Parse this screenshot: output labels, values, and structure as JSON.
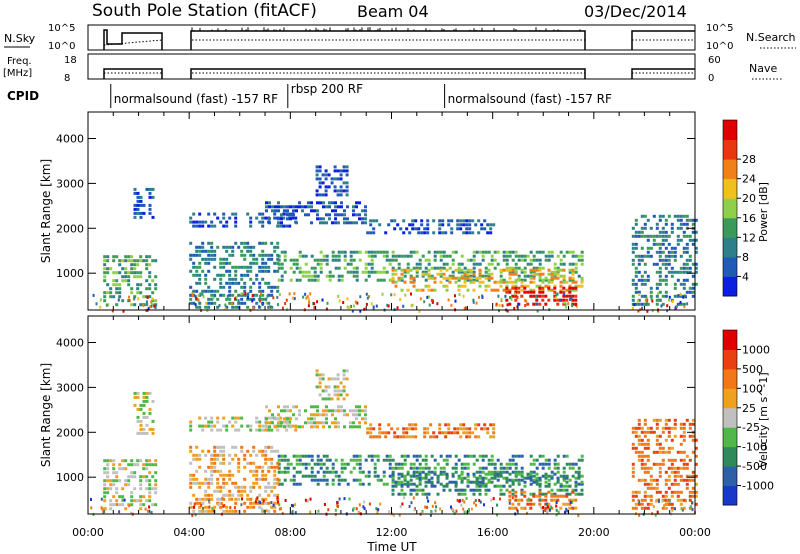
{
  "header": {
    "station": "South Pole Station (fitACF)",
    "beam": "Beam 04",
    "date": "03/Dec/2014"
  },
  "status_panels": {
    "nsky_label": "N.Sky",
    "nsky_ticks": [
      "10^5",
      "10^0"
    ],
    "nsearch_label": "N.Search",
    "nsearch_ticks": [
      "10^5",
      "10^0"
    ],
    "freq_label": "Freq.",
    "freq_unit": "[MHz]",
    "freq_ticks": [
      "18",
      "8"
    ],
    "nave_label": "Nave",
    "nave_ticks": [
      "60",
      "0"
    ],
    "cpid_label": "CPID",
    "cpid_segments": [
      {
        "label": "normalsound (fast) -157 RF",
        "start_h": 0.9,
        "end_h": 7.9
      },
      {
        "label": "rbsp 200 RF",
        "start_h": 7.9,
        "end_h": 14.1
      },
      {
        "label": "normalsound (fast) -157 RF",
        "start_h": 14.1,
        "end_h": 21.5
      }
    ]
  },
  "chart_data": [
    {
      "type": "heatmap",
      "name": "power",
      "title": "",
      "xlabel": "Time UT",
      "ylabel": "Slant Range [km]",
      "x_ticks": [
        "00:00",
        "04:00",
        "08:00",
        "12:00",
        "16:00",
        "20:00",
        "00:00"
      ],
      "xlim_hours": [
        0,
        24
      ],
      "y_ticks": [
        1000,
        2000,
        3000,
        4000
      ],
      "ylim_km": [
        180,
        4590
      ],
      "colorbar": {
        "label": "Power [dB]",
        "ticks": [
          "4",
          "8",
          "12",
          "16",
          "20",
          "24",
          "28"
        ],
        "colors": [
          "#0a1fe0",
          "#1f5ab8",
          "#2e7f8a",
          "#3a9a5a",
          "#8fcf4a",
          "#f0c020",
          "#f08018",
          "#e83810",
          "#e00000"
        ]
      },
      "regions": [
        {
          "t0": 0.6,
          "t1": 2.7,
          "r0": 250,
          "r1": 1400,
          "level": 3
        },
        {
          "t0": 1.8,
          "t1": 2.6,
          "r0": 2200,
          "r1": 2900,
          "level": 1
        },
        {
          "t0": 4.0,
          "t1": 8.2,
          "r0": 2000,
          "r1": 2350,
          "level": 1
        },
        {
          "t0": 7.0,
          "t1": 11.0,
          "r0": 2100,
          "r1": 2600,
          "level": 1
        },
        {
          "t0": 9.0,
          "t1": 10.2,
          "r0": 2700,
          "r1": 3400,
          "level": 1
        },
        {
          "t0": 11.0,
          "t1": 16.0,
          "r0": 1900,
          "r1": 2200,
          "level": 1
        },
        {
          "t0": 7.5,
          "t1": 19.5,
          "r0": 800,
          "r1": 1500,
          "level": 3
        },
        {
          "t0": 12.0,
          "t1": 19.5,
          "r0": 600,
          "r1": 1100,
          "level": 5
        },
        {
          "t0": 16.5,
          "t1": 19.3,
          "r0": 280,
          "r1": 700,
          "level": 8
        },
        {
          "t0": 21.5,
          "t1": 24.0,
          "r0": 300,
          "r1": 2300,
          "level": 2
        },
        {
          "t0": 4.0,
          "t1": 7.5,
          "r0": 250,
          "r1": 1700,
          "level": 2
        }
      ]
    },
    {
      "type": "heatmap",
      "name": "velocity",
      "title": "",
      "xlabel": "Time UT",
      "ylabel": "Slant Range [km]",
      "x_ticks": [
        "00:00",
        "04:00",
        "08:00",
        "12:00",
        "16:00",
        "20:00",
        "00:00"
      ],
      "xlim_hours": [
        0,
        24
      ],
      "y_ticks": [
        1000,
        2000,
        3000,
        4000
      ],
      "ylim_km": [
        180,
        4590
      ],
      "colorbar": {
        "label": "Velocity [m s^-1]",
        "ticks": [
          "1000",
          "500",
          "100",
          "25",
          "-25",
          "-100",
          "-500",
          "-1000"
        ],
        "colors": [
          "#1838c8",
          "#2e60a8",
          "#2e8a5a",
          "#50b848",
          "#c0c0c0",
          "#f0a020",
          "#f07818",
          "#e84010",
          "#e00000"
        ]
      },
      "regions": [
        {
          "t0": 0.6,
          "t1": 2.7,
          "r0": 250,
          "r1": 1400,
          "level": 4
        },
        {
          "t0": 1.8,
          "t1": 2.6,
          "r0": 2000,
          "r1": 2900,
          "level": 4
        },
        {
          "t0": 4.0,
          "t1": 8.2,
          "r0": 2000,
          "r1": 2350,
          "level": 4
        },
        {
          "t0": 7.0,
          "t1": 11.0,
          "r0": 2100,
          "r1": 2600,
          "level": 4
        },
        {
          "t0": 9.0,
          "t1": 10.2,
          "r0": 2700,
          "r1": 3400,
          "level": 4
        },
        {
          "t0": 11.0,
          "t1": 16.0,
          "r0": 1900,
          "r1": 2200,
          "level": 6
        },
        {
          "t0": 7.5,
          "t1": 19.5,
          "r0": 800,
          "r1": 1500,
          "level": 2
        },
        {
          "t0": 12.0,
          "t1": 19.5,
          "r0": 600,
          "r1": 1100,
          "level": 2
        },
        {
          "t0": 16.5,
          "t1": 19.3,
          "r0": 280,
          "r1": 700,
          "level": 6
        },
        {
          "t0": 21.5,
          "t1": 24.0,
          "r0": 300,
          "r1": 2300,
          "level": 6
        },
        {
          "t0": 4.0,
          "t1": 7.5,
          "r0": 250,
          "r1": 1700,
          "level": 5
        }
      ]
    }
  ]
}
